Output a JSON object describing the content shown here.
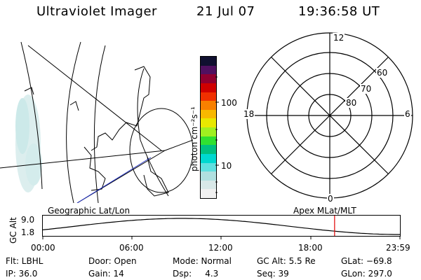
{
  "header": {
    "title": "Ultraviolet Imager",
    "date": "21 Jul 07",
    "time": "19:36:58 UT"
  },
  "colorbar": {
    "unit_label": "photon cm⁻²s⁻¹",
    "ticks": [
      "100",
      "10"
    ],
    "colors": [
      "#f0f0f0",
      "#d8e8e8",
      "#b0e0e0",
      "#60e0e0",
      "#00d8d0",
      "#00c080",
      "#30e030",
      "#a0f020",
      "#e8e800",
      "#f8b800",
      "#f88000",
      "#f03000",
      "#d00000",
      "#900030",
      "#501060",
      "#101030"
    ]
  },
  "polar_plot": {
    "mlt_labels": {
      "top": "12",
      "left": "18",
      "right": "6",
      "bottom": "0"
    },
    "lat_labels": [
      "60",
      "70",
      "80"
    ]
  },
  "map_labels": {
    "left": "Geographic Lat/Lon",
    "right": "Apex MLat/MLT"
  },
  "orbit_plot": {
    "y_axis_title": "GC Alt",
    "y_ticks": [
      "9.0",
      "1.8"
    ],
    "x_ticks": [
      "00:00",
      "06:00",
      "12:00",
      "18:00",
      "23:59"
    ],
    "current_time_fraction": 0.817
  },
  "footer": {
    "filter": "Flt: LBHL",
    "door": "Door: Open",
    "mode": "Mode: Normal",
    "gc_alt": "GC Alt: 5.5 Re",
    "glat": "GLat: −69.8",
    "ip": "IP: 36.0",
    "gain": "Gain: 14",
    "dsp": "Dsp:     4.3",
    "seq": "Seq: 39",
    "glon": "GLon: 297.0"
  }
}
